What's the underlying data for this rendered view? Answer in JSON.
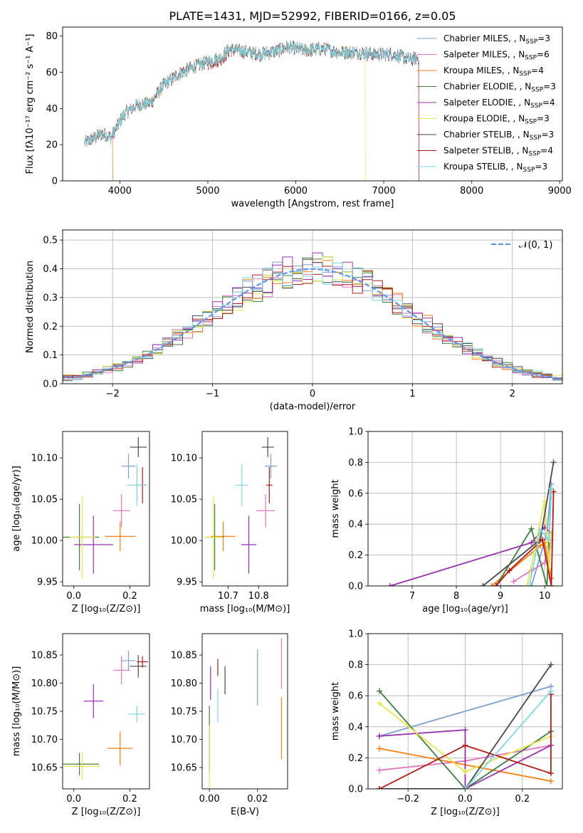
{
  "colors": {
    "Chabrier MILES": "#7f9fcf",
    "Salpeter MILES": "#e377c2",
    "Kroupa MILES": "#ff7f0e",
    "Chabrier ELODIE": "#3f7f3f",
    "Salpeter ELODIE": "#9b30b0",
    "Kroupa ELODIE": "#e6e64d",
    "Chabrier STELIB": "#4a4a4a",
    "Salpeter STELIB": "#b01c1c",
    "Kroupa STELIB": "#7fd6e0",
    "normal_curve": "#6495ed"
  },
  "chart_data": [
    {
      "id": "spectrum",
      "type": "line",
      "title": "PLATE=1431, MJD=52992, FIBERID=0166, z=0.05",
      "xlabel": "wavelength [Angstrom, rest frame]",
      "ylabel": "Flux [fλ10⁻¹⁷ erg cm⁻² s⁻¹ A⁻¹]",
      "xlim": [
        3350,
        9030
      ],
      "ylim": [
        0,
        85
      ],
      "xticks": [
        "4000",
        "5000",
        "6000",
        "7000",
        "8000",
        "9000"
      ],
      "yticks": [
        "0",
        "20",
        "40",
        "60",
        "80"
      ],
      "legend_position": "upper right",
      "legend": [
        {
          "name": "Chabrier MILES",
          "nssp": "3"
        },
        {
          "name": "Salpeter MILES",
          "nssp": "6"
        },
        {
          "name": "Kroupa MILES",
          "nssp": "4"
        },
        {
          "name": "Chabrier ELODIE",
          "nssp": "3"
        },
        {
          "name": "Salpeter ELODIE",
          "nssp": "4"
        },
        {
          "name": "Kroupa ELODIE",
          "nssp": "3"
        },
        {
          "name": "Chabrier STELIB",
          "nssp": "3"
        },
        {
          "name": "Salpeter STELIB",
          "nssp": "4"
        },
        {
          "name": "Kroupa STELIB",
          "nssp": "3"
        }
      ],
      "nssp_label": "N",
      "nssp_sub": "SSP",
      "continuum_x": [
        3600,
        3800,
        3900,
        3950,
        4050,
        4200,
        4350,
        4500,
        4700,
        4850,
        5000,
        5150,
        5250,
        5350,
        5450,
        5600,
        5800,
        5900,
        6100,
        6300,
        6500,
        6700,
        6900,
        7100,
        7300,
        7400
      ],
      "continuum_y": [
        21,
        26,
        24,
        28,
        37,
        42,
        43,
        53,
        60,
        63,
        66,
        68,
        73,
        72,
        71,
        70,
        72,
        74,
        72,
        73,
        71,
        71,
        70,
        70,
        67,
        68
      ],
      "dropouts": [
        {
          "name": "Kroupa MILES",
          "x": 3920
        },
        {
          "name": "Kroupa ELODIE",
          "x": 6790
        },
        {
          "name": "Salpeter STELIB",
          "x": 7400
        }
      ]
    },
    {
      "id": "residuals",
      "type": "histogram",
      "xlabel": "(data-model)/error",
      "ylabel": "Normed distribution",
      "xlim": [
        -2.5,
        2.5
      ],
      "ylim": [
        0,
        0.535
      ],
      "xticks": [
        "−2",
        "−1",
        "0",
        "1",
        "2"
      ],
      "yticks": [
        "0.0",
        "0.1",
        "0.2",
        "0.3",
        "0.4",
        "0.5"
      ],
      "bin_width": 0.1,
      "grid": true,
      "legend_position": "upper right",
      "normal_label": "𝒩(0, 1)"
    },
    {
      "id": "age-vs-Z",
      "type": "errorbar",
      "xlabel": "Z [log₁₀(Z/Z⊙)]",
      "ylabel": "age  [log₁₀(age/yr)]",
      "xlim": [
        -0.04,
        0.27
      ],
      "ylim": [
        9.945,
        10.132
      ],
      "xticks": [
        "0.0",
        "0.2"
      ],
      "yticks": [
        "9.95",
        "10.00",
        "10.05",
        "10.10"
      ],
      "points": [
        {
          "name": "Chabrier MILES",
          "x": 0.195,
          "xe": 0.025,
          "y": 10.09,
          "ye": 0.015
        },
        {
          "name": "Salpeter MILES",
          "x": 0.17,
          "xe": 0.03,
          "y": 10.036,
          "ye": 0.02
        },
        {
          "name": "Kroupa MILES",
          "x": 0.165,
          "xe": 0.055,
          "y": 10.005,
          "ye": 0.018
        },
        {
          "name": "Chabrier ELODIE",
          "x": 0.02,
          "xe": 0.07,
          "y": 10.004,
          "ye": 0.04
        },
        {
          "name": "Salpeter ELODIE",
          "x": 0.07,
          "xe": 0.07,
          "y": 9.995,
          "ye": 0.035
        },
        {
          "name": "Kroupa ELODIE",
          "x": 0.03,
          "xe": 0.045,
          "y": 10.004,
          "ye": 0.05
        },
        {
          "name": "Chabrier STELIB",
          "x": 0.23,
          "xe": 0.03,
          "y": 10.113,
          "ye": 0.012
        },
        {
          "name": "Salpeter STELIB",
          "x": 0.245,
          "xe": 0.015,
          "y": 10.067,
          "ye": 0.022
        },
        {
          "name": "Kroupa STELIB",
          "x": 0.225,
          "xe": 0.035,
          "y": 10.067,
          "ye": 0.025
        }
      ]
    },
    {
      "id": "age-vs-mass",
      "type": "errorbar",
      "xlabel": "mass [log₁₀(M/M⊙)]",
      "ylabel": "",
      "xlim": [
        10.615,
        10.895
      ],
      "ylim": [
        9.945,
        10.132
      ],
      "xticks": [
        "10.7",
        "10.8"
      ],
      "yticks": [
        "9.95",
        "10.00",
        "10.05",
        "10.10"
      ],
      "points": [
        {
          "name": "Chabrier MILES",
          "x": 10.84,
          "xe": 0.02,
          "y": 10.09,
          "ye": 0.015
        },
        {
          "name": "Salpeter MILES",
          "x": 10.823,
          "xe": 0.03,
          "y": 10.036,
          "ye": 0.02
        },
        {
          "name": "Kroupa MILES",
          "x": 10.684,
          "xe": 0.04,
          "y": 10.005,
          "ye": 0.018
        },
        {
          "name": "Chabrier ELODIE",
          "x": 10.656,
          "xe": 0.03,
          "y": 10.004,
          "ye": 0.04
        },
        {
          "name": "Salpeter ELODIE",
          "x": 10.768,
          "xe": 0.025,
          "y": 9.995,
          "ye": 0.035
        },
        {
          "name": "Kroupa ELODIE",
          "x": 10.652,
          "xe": 0.03,
          "y": 10.004,
          "ye": 0.05
        },
        {
          "name": "Chabrier STELIB",
          "x": 10.83,
          "xe": 0.02,
          "y": 10.113,
          "ye": 0.012
        },
        {
          "name": "Salpeter STELIB",
          "x": 10.835,
          "xe": 0.01,
          "y": 10.067,
          "ye": 0.022
        },
        {
          "name": "Kroupa STELIB",
          "x": 10.745,
          "xe": 0.02,
          "y": 10.067,
          "ye": 0.025
        }
      ]
    },
    {
      "id": "weight-vs-age",
      "type": "line",
      "xlabel": "age  [log₁₀(age/yr)]",
      "ylabel": "mass weight",
      "xlim": [
        6.0,
        10.4
      ],
      "ylim": [
        0,
        1.0
      ],
      "xticks": [
        "7",
        "8",
        "9",
        "10"
      ],
      "yticks": [
        "0.0",
        "0.2",
        "0.4",
        "0.6",
        "0.8",
        "1.0"
      ],
      "grid": true,
      "series": [
        {
          "name": "Chabrier MILES",
          "x": [
            9.0,
            9.7,
            10.05,
            10.15
          ],
          "y": [
            0.0,
            0.0,
            0.34,
            0.66
          ]
        },
        {
          "name": "Salpeter MILES",
          "x": [
            9.3,
            9.7,
            10.0,
            10.1,
            10.15
          ],
          "y": [
            0.03,
            0.1,
            0.15,
            0.25,
            0.3
          ]
        },
        {
          "name": "Kroupa MILES",
          "x": [
            8.8,
            9.9,
            10.0,
            10.15
          ],
          "y": [
            0.0,
            0.26,
            0.28,
            0.05
          ]
        },
        {
          "name": "Chabrier ELODIE",
          "x": [
            8.9,
            9.7,
            10.05,
            10.15
          ],
          "y": [
            0.0,
            0.37,
            0.0,
            0.63
          ]
        },
        {
          "name": "Salpeter ELODIE",
          "x": [
            6.5,
            9.7,
            10.0,
            10.15
          ],
          "y": [
            0.0,
            0.28,
            0.38,
            0.34
          ]
        },
        {
          "name": "Kroupa ELODIE",
          "x": [
            9.6,
            10.0,
            10.1,
            10.15
          ],
          "y": [
            0.0,
            0.55,
            0.11,
            0.34
          ]
        },
        {
          "name": "Chabrier STELIB",
          "x": [
            8.6,
            9.9,
            10.2
          ],
          "y": [
            0.0,
            0.3,
            0.8
          ]
        },
        {
          "name": "Salpeter STELIB",
          "x": [
            8.9,
            9.2,
            9.95,
            10.15,
            10.2
          ],
          "y": [
            0.0,
            0.1,
            0.3,
            0.0,
            0.61
          ]
        },
        {
          "name": "Kroupa STELIB",
          "x": [
            9.65,
            9.9,
            10.1,
            10.15
          ],
          "y": [
            0.0,
            0.36,
            0.3,
            0.63
          ]
        }
      ]
    },
    {
      "id": "mass-vs-Z",
      "type": "errorbar",
      "xlabel": "Z [log₁₀(Z/Z⊙)]",
      "ylabel": "mass [log₁₀(M/M⊙)]",
      "xlim": [
        -0.04,
        0.27
      ],
      "ylim": [
        10.612,
        10.888
      ],
      "xticks": [
        "0.0",
        "0.2"
      ],
      "yticks": [
        "10.65",
        "10.70",
        "10.75",
        "10.80",
        "10.85"
      ],
      "points": [
        {
          "name": "Chabrier MILES",
          "x": 0.195,
          "xe": 0.025,
          "y": 10.84,
          "ye": 0.018
        },
        {
          "name": "Salpeter MILES",
          "x": 0.17,
          "xe": 0.03,
          "y": 10.823,
          "ye": 0.025
        },
        {
          "name": "Kroupa MILES",
          "x": 0.165,
          "xe": 0.045,
          "y": 10.684,
          "ye": 0.03
        },
        {
          "name": "Chabrier ELODIE",
          "x": 0.02,
          "xe": 0.07,
          "y": 10.656,
          "ye": 0.02
        },
        {
          "name": "Salpeter ELODIE",
          "x": 0.07,
          "xe": 0.035,
          "y": 10.768,
          "ye": 0.03
        },
        {
          "name": "Kroupa ELODIE",
          "x": 0.03,
          "xe": 0.065,
          "y": 10.652,
          "ye": 0.025
        },
        {
          "name": "Chabrier STELIB",
          "x": 0.23,
          "xe": 0.03,
          "y": 10.83,
          "ye": 0.02
        },
        {
          "name": "Salpeter STELIB",
          "x": 0.245,
          "xe": 0.02,
          "y": 10.838,
          "ye": 0.01
        },
        {
          "name": "Kroupa STELIB",
          "x": 0.225,
          "xe": 0.03,
          "y": 10.745,
          "ye": 0.015
        }
      ]
    },
    {
      "id": "mass-vs-ebv",
      "type": "errorbar",
      "xlabel": "E(B-V)",
      "ylabel": "",
      "xlim": [
        -0.003,
        0.0325
      ],
      "ylim": [
        10.612,
        10.888
      ],
      "xticks": [
        "0.00",
        "0.02"
      ],
      "yticks": [
        "10.65",
        "10.70",
        "10.75",
        "10.80",
        "10.85"
      ],
      "points": [
        {
          "name": "Chabrier MILES",
          "x": 0.02,
          "xe": 0,
          "y": 10.81,
          "ye": 0.05
        },
        {
          "name": "Salpeter MILES",
          "x": 0.03,
          "xe": 0,
          "y": 10.835,
          "ye": 0.045
        },
        {
          "name": "Kroupa MILES",
          "x": 0.03,
          "xe": 0,
          "y": 10.72,
          "ye": 0.055
        },
        {
          "name": "Chabrier ELODIE",
          "x": 0.0,
          "xe": 0,
          "y": 10.7,
          "ye": 0.06
        },
        {
          "name": "Salpeter ELODIE",
          "x": 0.0005,
          "xe": 0,
          "y": 10.8,
          "ye": 0.03
        },
        {
          "name": "Kroupa ELODIE",
          "x": 0.0,
          "xe": 0,
          "y": 10.67,
          "ye": 0.055
        },
        {
          "name": "Chabrier STELIB",
          "x": 0.0065,
          "xe": 0,
          "y": 10.805,
          "ye": 0.025
        },
        {
          "name": "Salpeter STELIB",
          "x": 0.0035,
          "xe": 0,
          "y": 10.828,
          "ye": 0.015
        },
        {
          "name": "Kroupa STELIB",
          "x": 0.0035,
          "xe": 0,
          "y": 10.76,
          "ye": 0.03
        }
      ]
    },
    {
      "id": "weight-vs-Z",
      "type": "line",
      "xlabel": "Z [log₁₀(Z/Z⊙)]",
      "ylabel": "mass weight",
      "xlim": [
        -0.34,
        0.34
      ],
      "ylim": [
        0,
        1.0
      ],
      "xticks": [
        "−0.2",
        "0.0",
        "0.2"
      ],
      "yticks": [
        "0.0",
        "0.2",
        "0.4",
        "0.6",
        "0.8",
        "1.0"
      ],
      "grid": true,
      "series": [
        {
          "name": "Chabrier MILES",
          "x": [
            -0.3,
            0.3
          ],
          "y": [
            0.34,
            0.66
          ]
        },
        {
          "name": "Salpeter MILES",
          "x": [
            -0.3,
            0.0,
            0.3
          ],
          "y": [
            0.12,
            0.18,
            0.28
          ]
        },
        {
          "name": "Kroupa MILES",
          "x": [
            -0.3,
            0.3
          ],
          "y": [
            0.26,
            0.05
          ]
        },
        {
          "name": "Chabrier ELODIE",
          "x": [
            -0.3,
            0.0,
            0.3
          ],
          "y": [
            0.63,
            0.0,
            0.37
          ]
        },
        {
          "name": "Salpeter ELODIE",
          "x": [
            -0.3,
            0.0,
            0.0,
            0.3
          ],
          "y": [
            0.34,
            0.38,
            0.0,
            0.28
          ]
        },
        {
          "name": "Kroupa ELODIE",
          "x": [
            -0.3,
            0.0,
            0.3
          ],
          "y": [
            0.55,
            0.11,
            0.34
          ]
        },
        {
          "name": "Chabrier STELIB",
          "x": [
            -0.3,
            0.0,
            0.3
          ],
          "y": [
            0.0,
            0.0,
            0.8
          ]
        },
        {
          "name": "Salpeter STELIB",
          "x": [
            -0.3,
            0.0,
            0.3,
            0.3
          ],
          "y": [
            0.0,
            0.28,
            0.1,
            0.61
          ]
        },
        {
          "name": "Kroupa STELIB",
          "x": [
            0.0,
            0.3
          ],
          "y": [
            0.0,
            0.63
          ]
        }
      ]
    }
  ]
}
